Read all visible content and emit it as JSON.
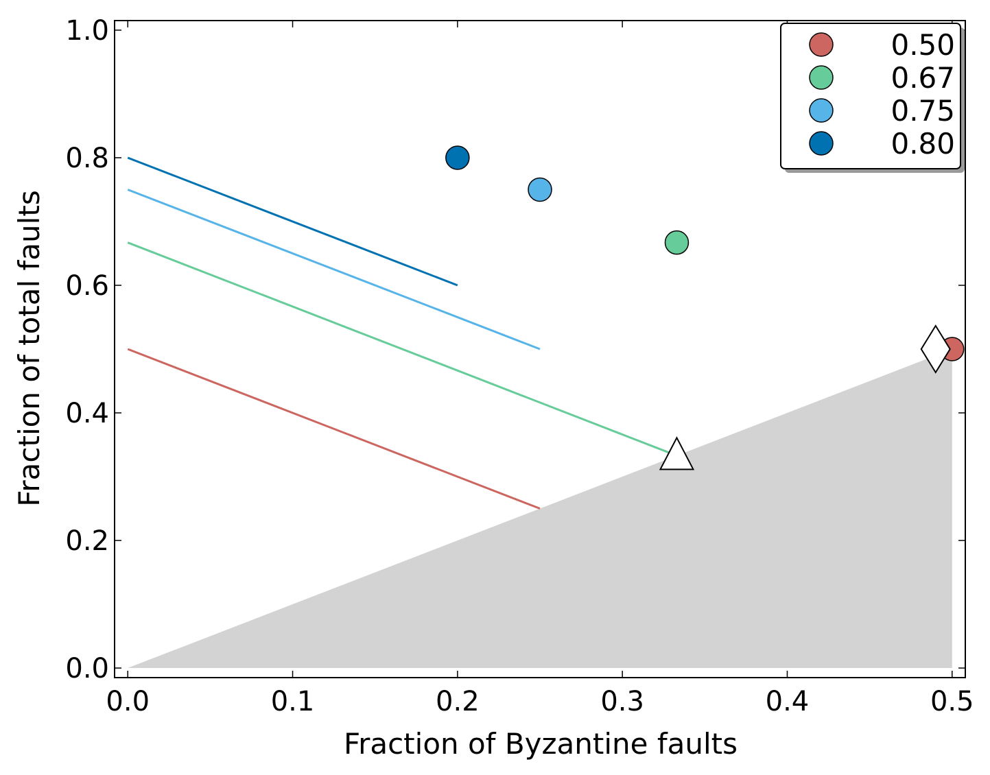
{
  "chart_data": {
    "type": "line",
    "title": "",
    "xlabel": "Fraction of Byzantine faults",
    "ylabel": "Fraction of total faults",
    "xlim": [
      -0.008,
      0.508
    ],
    "ylim": [
      -0.015,
      1.015
    ],
    "xticks": [
      "0.0",
      "0.1",
      "0.2",
      "0.3",
      "0.4",
      "0.5"
    ],
    "yticks": [
      "0.0",
      "0.2",
      "0.4",
      "0.6",
      "0.8",
      "1.0"
    ],
    "grid": false,
    "legend_position": "top-right",
    "shaded_region": {
      "points": [
        [
          0,
          0
        ],
        [
          0.5,
          0.5
        ],
        [
          0.5,
          0
        ]
      ],
      "color": "#d3d3d3"
    },
    "series": [
      {
        "name": "0.50",
        "color": "#cd6660",
        "line": [
          [
            0,
            0.5
          ],
          [
            0.25,
            0.25
          ]
        ],
        "point": [
          0.5,
          0.5
        ]
      },
      {
        "name": "0.67",
        "color": "#66cc99",
        "line": [
          [
            0,
            0.667
          ],
          [
            0.333,
            0.333
          ]
        ],
        "point": [
          0.333,
          0.667
        ]
      },
      {
        "name": "0.75",
        "color": "#56b4e9",
        "line": [
          [
            0,
            0.75
          ],
          [
            0.25,
            0.5
          ]
        ],
        "point": [
          0.25,
          0.75
        ]
      },
      {
        "name": "0.80",
        "color": "#0072b2",
        "line": [
          [
            0,
            0.8
          ],
          [
            0.2,
            0.6
          ]
        ],
        "point": [
          0.2,
          0.8
        ]
      }
    ],
    "markers": [
      {
        "shape": "triangle",
        "x": 0.333,
        "y": 0.333
      },
      {
        "shape": "diamond",
        "x": 0.49,
        "y": 0.5
      }
    ]
  }
}
